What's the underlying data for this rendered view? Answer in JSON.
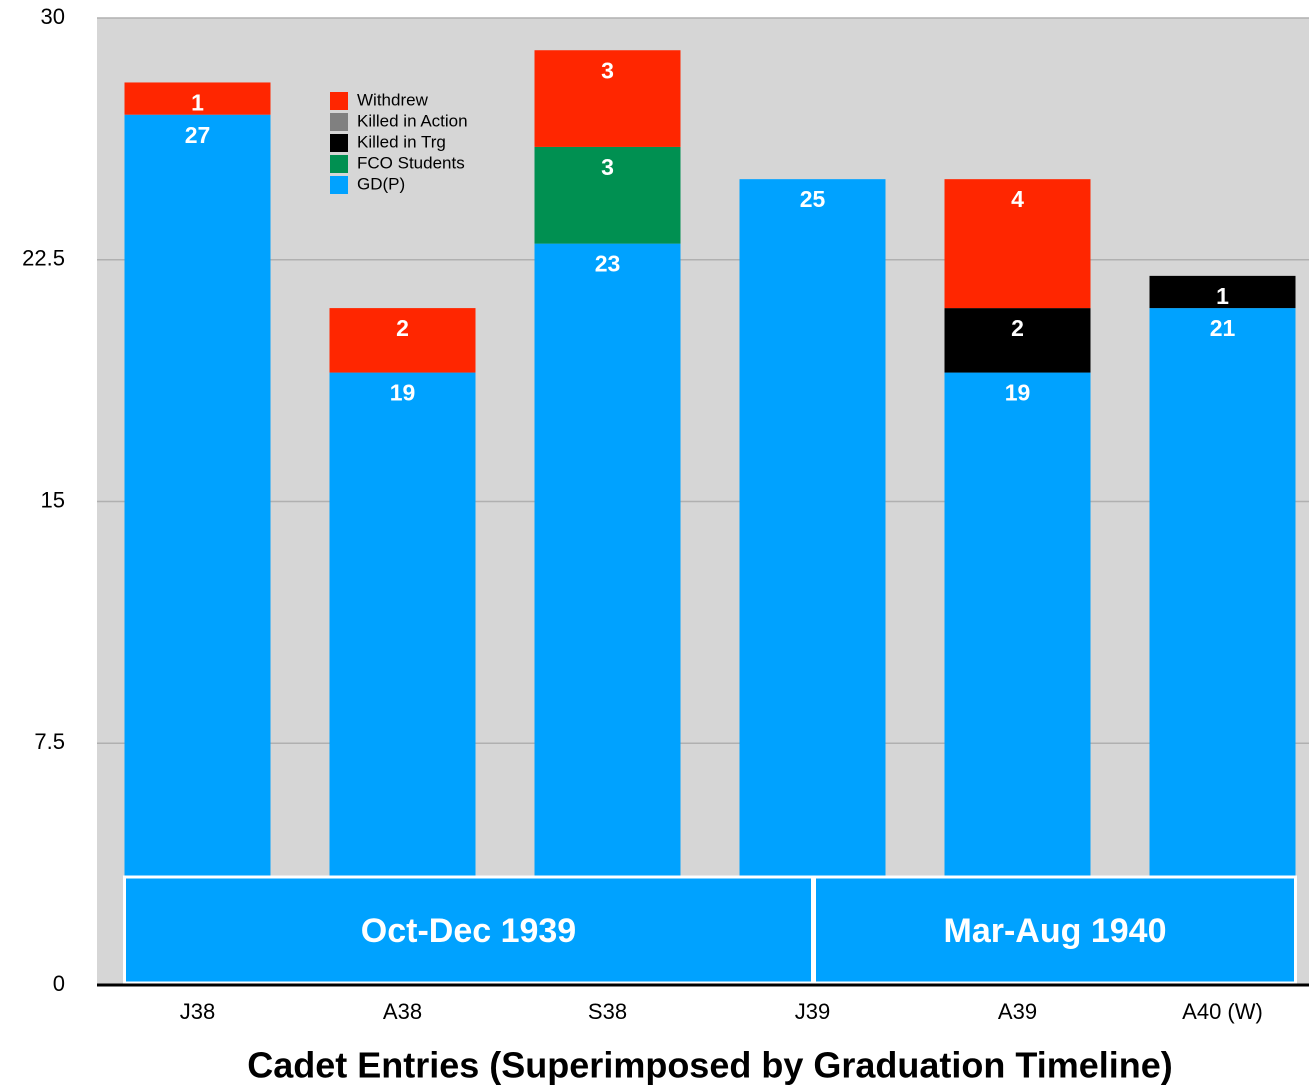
{
  "chart_data": {
    "type": "stacked_bar",
    "x_label": "Cadet Entries (Superimposed by Graduation Timeline)",
    "categories": [
      "J38",
      "A38",
      "S38",
      "J39",
      "A39",
      "A40 (W)"
    ],
    "series": [
      {
        "name": "GD(P)",
        "color": "#00a2ff",
        "values": [
          27,
          19,
          23,
          25,
          19,
          21
        ]
      },
      {
        "name": "FCO Students",
        "color": "#009051",
        "values": [
          null,
          null,
          3,
          null,
          null,
          null
        ]
      },
      {
        "name": "Killed in Trg",
        "color": "#000000",
        "values": [
          null,
          null,
          null,
          null,
          2,
          1
        ]
      },
      {
        "name": "Killed in Action",
        "color": "#808080",
        "values": [
          null,
          null,
          null,
          null,
          null,
          null
        ]
      },
      {
        "name": "Withdrew",
        "color": "#ff2600",
        "values": [
          1,
          2,
          3,
          null,
          4,
          null
        ]
      }
    ],
    "ylim": [
      0,
      30
    ],
    "yticks": [
      0,
      7.5,
      15,
      22.5,
      30
    ],
    "grid": true,
    "annotations": [
      "Oct-Dec 1939",
      "Mar-Aug 1940"
    ]
  }
}
